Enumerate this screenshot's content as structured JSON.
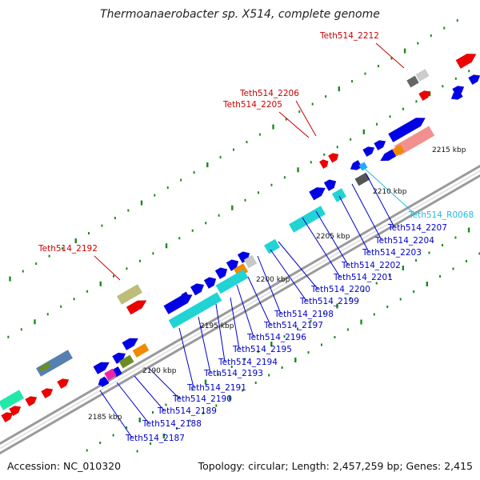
{
  "title": "Thermoanaerobacter sp. X514, complete genome",
  "accession": "Accession: NC_010320",
  "topology": "Topology: circular; Length: 2,457,259 bp; Genes: 2,415",
  "colors": {
    "blue": "#0000e6",
    "red": "#ee0000",
    "cyan": "#22d3d3",
    "teal": "#33cccc",
    "backbone": "#8a8a8a",
    "tick": "#1a8a1a"
  },
  "kbp_labels": [
    "2185 kbp",
    "2190 kbp",
    "2195 kbp",
    "2200 kbp",
    "2205 kbp",
    "2210 kbp",
    "2215 kbp"
  ],
  "gene_labels": [
    {
      "text": "Teth514_2212",
      "color": "red"
    },
    {
      "text": "Teth514_2206",
      "color": "red"
    },
    {
      "text": "Teth514_2205",
      "color": "red"
    },
    {
      "text": "Teth514_2192",
      "color": "red"
    },
    {
      "text": "Teth514_R0068",
      "color": "cyan"
    },
    {
      "text": "Teth514_2207",
      "color": "blue"
    },
    {
      "text": "Teth514_2204",
      "color": "blue"
    },
    {
      "text": "Teth514_2203",
      "color": "blue"
    },
    {
      "text": "Teth514_2202",
      "color": "blue"
    },
    {
      "text": "Teth514_2201",
      "color": "blue"
    },
    {
      "text": "Teth514_2200",
      "color": "blue"
    },
    {
      "text": "Teth514_2199",
      "color": "blue"
    },
    {
      "text": "Teth514_2198",
      "color": "blue"
    },
    {
      "text": "Teth514_2197",
      "color": "blue"
    },
    {
      "text": "Teth514_2196",
      "color": "blue"
    },
    {
      "text": "Teth514_2195",
      "color": "blue"
    },
    {
      "text": "Teth514_2194",
      "color": "blue"
    },
    {
      "text": "Teth514_2193",
      "color": "blue"
    },
    {
      "text": "Teth514_2191",
      "color": "blue"
    },
    {
      "text": "Teth514_2190",
      "color": "blue"
    },
    {
      "text": "Teth514_2189",
      "color": "blue"
    },
    {
      "text": "Teth514_2188",
      "color": "blue"
    },
    {
      "text": "Teth514_2187",
      "color": "blue"
    }
  ]
}
